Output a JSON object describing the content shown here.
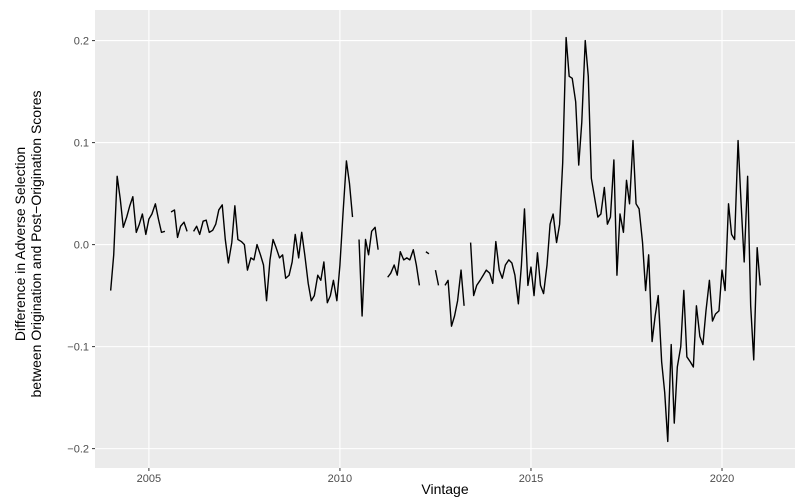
{
  "chart_data": {
    "type": "line",
    "x_label": "Vintage",
    "y_label": [
      "Difference in Adverse Selection",
      "between Origination and Post−Origination Scores"
    ],
    "xlim": [
      2003.59,
      2021.91
    ],
    "ylim": [
      -0.219,
      0.23
    ],
    "xticks": [
      2005,
      2010,
      2015,
      2020
    ],
    "yticks": [
      {
        "value": -0.2,
        "label": "−0.2"
      },
      {
        "value": -0.1,
        "label": "−0.1"
      },
      {
        "value": 0,
        "label": "0.0"
      },
      0.1,
      0.2
    ],
    "grid": true,
    "background": "#ebebeb",
    "color": "#000000",
    "x": [
      2004,
      2004.08,
      2004.17,
      2004.25,
      2004.33,
      2004.42,
      2004.5,
      2004.58,
      2004.67,
      2004.75,
      2004.83,
      2004.92,
      2005,
      2005.08,
      2005.17,
      2005.25,
      2005.33,
      2005.42,
      2005.5,
      2005.58,
      2005.67,
      2005.75,
      2005.83,
      2005.92,
      2006,
      2006.08,
      2006.17,
      2006.25,
      2006.33,
      2006.42,
      2006.5,
      2006.58,
      2006.67,
      2006.75,
      2006.83,
      2006.92,
      2007,
      2007.08,
      2007.17,
      2007.25,
      2007.33,
      2007.42,
      2007.5,
      2007.58,
      2007.67,
      2007.75,
      2007.83,
      2007.92,
      2008,
      2008.08,
      2008.17,
      2008.25,
      2008.33,
      2008.42,
      2008.5,
      2008.58,
      2008.67,
      2008.75,
      2008.83,
      2008.92,
      2009,
      2009.08,
      2009.17,
      2009.25,
      2009.33,
      2009.42,
      2009.5,
      2009.58,
      2009.67,
      2009.75,
      2009.83,
      2009.92,
      2010,
      2010.08,
      2010.17,
      2010.25,
      2010.33,
      2010.42,
      2010.5,
      2010.58,
      2010.67,
      2010.75,
      2010.83,
      2010.92,
      2011,
      2011.08,
      2011.17,
      2011.25,
      2011.33,
      2011.42,
      2011.5,
      2011.58,
      2011.67,
      2011.75,
      2011.83,
      2011.92,
      2012,
      2012.08,
      2012.17,
      2012.25,
      2012.33,
      2012.42,
      2012.5,
      2012.58,
      2012.67,
      2012.75,
      2012.83,
      2012.92,
      2013,
      2013.08,
      2013.17,
      2013.25,
      2013.33,
      2013.42,
      2013.5,
      2013.58,
      2013.67,
      2013.75,
      2013.83,
      2013.92,
      2014,
      2014.08,
      2014.17,
      2014.25,
      2014.33,
      2014.42,
      2014.5,
      2014.58,
      2014.67,
      2014.75,
      2014.83,
      2014.92,
      2015,
      2015.08,
      2015.17,
      2015.25,
      2015.33,
      2015.42,
      2015.5,
      2015.58,
      2015.67,
      2015.75,
      2015.83,
      2015.92,
      2016,
      2016.08,
      2016.17,
      2016.25,
      2016.33,
      2016.42,
      2016.5,
      2016.58,
      2016.67,
      2016.75,
      2016.83,
      2016.92,
      2017,
      2017.08,
      2017.17,
      2017.25,
      2017.33,
      2017.42,
      2017.5,
      2017.58,
      2017.67,
      2017.75,
      2017.83,
      2017.92,
      2018,
      2018.08,
      2018.17,
      2018.25,
      2018.33,
      2018.42,
      2018.5,
      2018.58,
      2018.67,
      2018.75,
      2018.83,
      2018.92,
      2019,
      2019.08,
      2019.17,
      2019.25,
      2019.33,
      2019.42,
      2019.5,
      2019.58,
      2019.67,
      2019.75,
      2019.83,
      2019.92,
      2020,
      2020.08,
      2020.17,
      2020.25,
      2020.33,
      2020.42,
      2020.5,
      2020.58,
      2020.67,
      2020.75,
      2020.83,
      2020.92,
      2021
    ],
    "values": [
      -0.045,
      -0.01,
      0.067,
      0.045,
      0.017,
      0.027,
      0.038,
      0.047,
      0.012,
      0.02,
      0.03,
      0.01,
      0.025,
      0.03,
      0.04,
      0.025,
      0.012,
      0.013,
      null,
      0.032,
      0.034,
      0.007,
      0.018,
      0.022,
      0.013,
      null,
      0.013,
      0.018,
      0.01,
      0.023,
      0.024,
      0.012,
      0.014,
      0.02,
      0.034,
      0.039,
      0.005,
      -0.018,
      0.002,
      0.038,
      0.005,
      0.003,
      0,
      -0.025,
      -0.013,
      -0.015,
      0,
      -0.01,
      -0.02,
      -0.055,
      -0.015,
      0.005,
      -0.003,
      -0.013,
      -0.01,
      -0.033,
      -0.03,
      -0.017,
      0.01,
      -0.013,
      0.012,
      -0.01,
      -0.038,
      -0.055,
      -0.05,
      -0.03,
      -0.035,
      -0.017,
      -0.057,
      -0.05,
      -0.035,
      -0.055,
      -0.02,
      0.03,
      0.082,
      0.06,
      0.027,
      null,
      0.005,
      -0.07,
      0.005,
      -0.01,
      0.013,
      0.017,
      -0.005,
      null,
      null,
      -0.032,
      -0.028,
      -0.02,
      -0.03,
      -0.007,
      -0.015,
      -0.013,
      -0.015,
      -0.005,
      -0.02,
      -0.04,
      null,
      -0.007,
      -0.009,
      null,
      -0.025,
      -0.04,
      null,
      -0.04,
      -0.035,
      -0.08,
      -0.07,
      -0.055,
      -0.025,
      -0.06,
      null,
      0.002,
      -0.05,
      -0.04,
      -0.035,
      -0.03,
      -0.025,
      -0.028,
      -0.038,
      0.003,
      -0.025,
      -0.033,
      -0.02,
      -0.015,
      -0.018,
      -0.03,
      -0.058,
      -0.02,
      0.035,
      -0.04,
      -0.022,
      -0.05,
      -0.008,
      -0.04,
      -0.048,
      -0.02,
      0.02,
      0.03,
      0.002,
      0.02,
      0.08,
      0.203,
      0.165,
      0.163,
      0.14,
      0.078,
      0.12,
      0.2,
      0.165,
      0.065,
      0.045,
      0.027,
      0.03,
      0.056,
      0.02,
      0.027,
      0.083,
      -0.03,
      0.03,
      0.012,
      0.063,
      0.04,
      0.102,
      0.04,
      0.035,
      0.002,
      -0.045,
      -0.01,
      -0.095,
      -0.07,
      -0.05,
      -0.115,
      -0.145,
      -0.193,
      -0.098,
      -0.175,
      -0.12,
      -0.1,
      -0.045,
      -0.11,
      -0.115,
      -0.12,
      -0.06,
      -0.09,
      -0.098,
      -0.065,
      -0.035,
      -0.075,
      -0.068,
      -0.065,
      -0.025,
      -0.045,
      0.04,
      0.01,
      0.005,
      0.102,
      0.04,
      -0.017,
      0.067,
      -0.06,
      -0.113,
      -0.003,
      -0.04
    ]
  }
}
